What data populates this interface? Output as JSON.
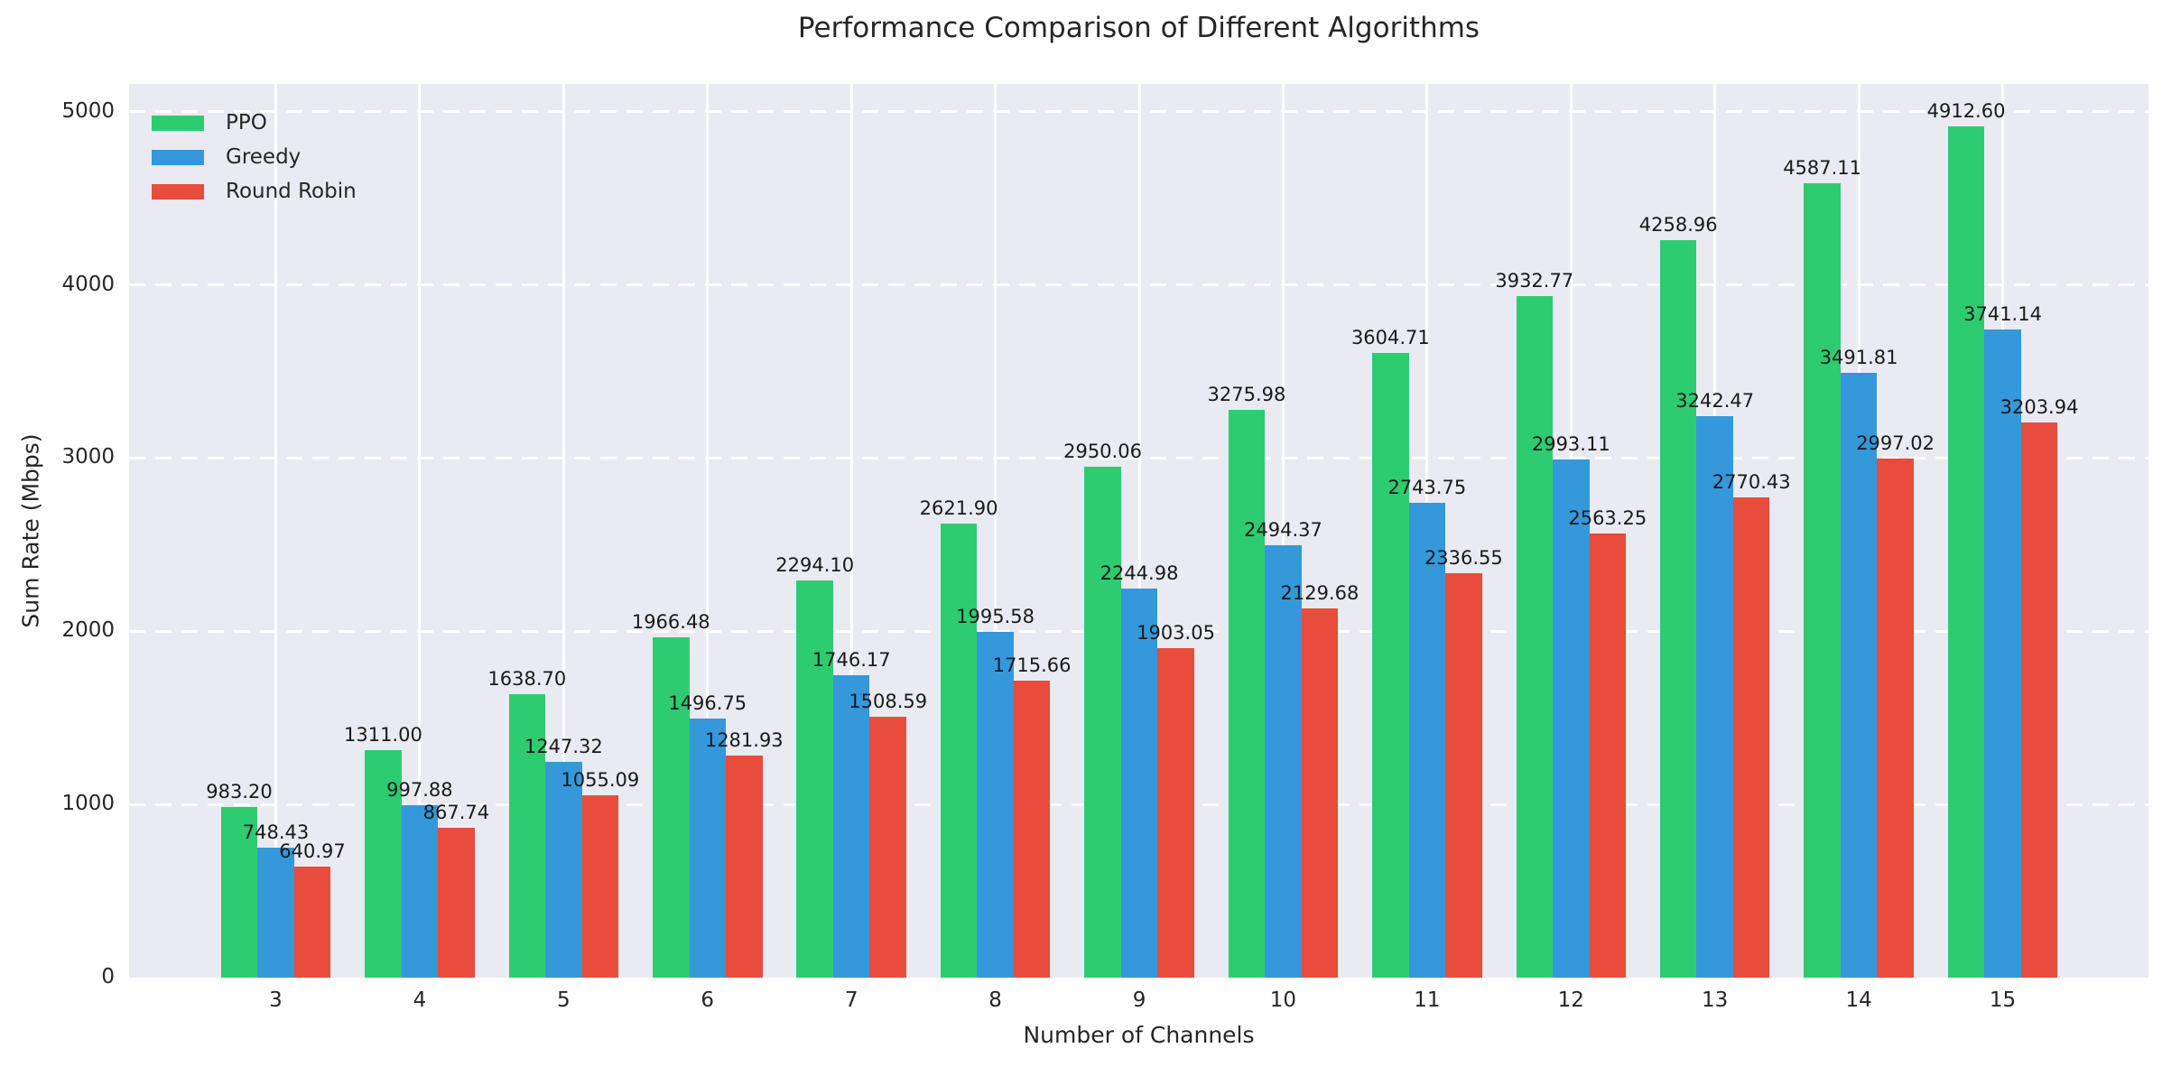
{
  "chart_data": {
    "type": "bar",
    "title": "Performance Comparison of Different Algorithms",
    "xlabel": "Number of Channels",
    "ylabel": "Sum Rate (Mbps)",
    "categories": [
      3,
      4,
      5,
      6,
      7,
      8,
      9,
      10,
      11,
      12,
      13,
      14,
      15
    ],
    "series": [
      {
        "name": "PPO",
        "color": "#2ecc71",
        "values": [
          983.2,
          1311.0,
          1638.7,
          1966.48,
          2294.1,
          2621.9,
          2950.06,
          3275.98,
          3604.71,
          3932.77,
          4258.96,
          4587.11,
          4912.6
        ]
      },
      {
        "name": "Greedy",
        "color": "#3498db",
        "values": [
          748.43,
          997.88,
          1247.32,
          1496.75,
          1746.17,
          1995.58,
          2244.98,
          2494.37,
          2743.75,
          2993.11,
          3242.47,
          3491.81,
          3741.14
        ]
      },
      {
        "name": "Round Robin",
        "color": "#e74c3c",
        "values": [
          640.97,
          867.74,
          1055.09,
          1281.93,
          1508.59,
          1715.66,
          1903.05,
          2129.68,
          2336.55,
          2563.25,
          2770.43,
          2997.02,
          3203.94
        ]
      }
    ],
    "yticks": [
      0,
      1000,
      2000,
      3000,
      4000,
      5000
    ],
    "ylim": [
      0,
      5160
    ],
    "grid": true,
    "value_label_decimals": 2,
    "legend_position": "upper left",
    "plot_bg_color": "#eaeaf2",
    "grid_color": "#ffffff",
    "text_color": "#262626"
  }
}
